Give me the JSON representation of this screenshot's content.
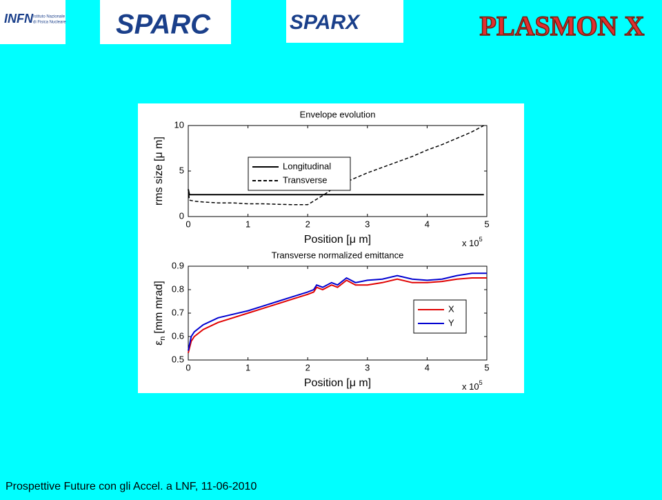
{
  "logos": {
    "infn": {
      "name": "INFN",
      "lines": [
        "Istituto Nazionale",
        "di Fisica Nucleare"
      ]
    },
    "sparc": "SPARC",
    "sparx": "SPARX",
    "plasmonx": "PLASMON X"
  },
  "footer": "Prospettive Future con gli Accel. a LNF, 11-06-2010",
  "chart_data": [
    {
      "type": "line",
      "title": "Envelope evolution",
      "xlabel": "Position [μ m]",
      "ylabel": "rms size [μ m]",
      "x_multiplier": {
        "base": "x 10",
        "exponent": "5"
      },
      "x": [
        0,
        0.02,
        0.1,
        0.25,
        0.5,
        0.75,
        1,
        1.25,
        1.5,
        1.75,
        1.9,
        2,
        2.25,
        2.5,
        2.75,
        3,
        3.25,
        3.5,
        3.75,
        4,
        4.25,
        4.5,
        4.75,
        4.95
      ],
      "series": [
        {
          "name": "Longitudinal",
          "color": "#000000",
          "linestyle": "solid",
          "values": [
            3,
            2.4,
            2.4,
            2.4,
            2.4,
            2.4,
            2.4,
            2.4,
            2.4,
            2.4,
            2.4,
            2.4,
            2.4,
            2.4,
            2.4,
            2.4,
            2.4,
            2.4,
            2.4,
            2.4,
            2.4,
            2.4,
            2.4,
            2.4
          ]
        },
        {
          "name": "Transverse",
          "color": "#000000",
          "linestyle": "dashed",
          "values": [
            3,
            1.8,
            1.7,
            1.6,
            1.5,
            1.5,
            1.4,
            1.4,
            1.35,
            1.3,
            1.3,
            1.3,
            2.3,
            3.4,
            4.1,
            4.8,
            5.4,
            6.0,
            6.6,
            7.3,
            7.9,
            8.6,
            9.3,
            10
          ]
        }
      ],
      "xlim": [
        0,
        5
      ],
      "xticks": [
        0,
        1,
        2,
        3,
        4,
        5
      ],
      "ylim": [
        0,
        10
      ],
      "yticks": [
        0,
        5,
        10
      ],
      "legend": "center",
      "grid": false
    },
    {
      "type": "line",
      "title": "Transverse normalized emittance",
      "xlabel": "Position [μ m]",
      "ylabel": {
        "symbol": "ε",
        "sub": "n",
        "unit": "[mm mrad]"
      },
      "x_multiplier": {
        "base": "x 10",
        "exponent": "5"
      },
      "x": [
        0,
        0.05,
        0.1,
        0.25,
        0.5,
        0.75,
        1,
        1.25,
        1.5,
        1.75,
        2,
        2.1,
        2.15,
        2.25,
        2.4,
        2.5,
        2.65,
        2.8,
        3,
        3.25,
        3.5,
        3.75,
        4,
        4.25,
        4.5,
        4.75,
        5
      ],
      "series": [
        {
          "name": "X",
          "color": "#e00000",
          "linestyle": "solid",
          "values": [
            0.53,
            0.58,
            0.6,
            0.63,
            0.66,
            0.68,
            0.7,
            0.72,
            0.74,
            0.76,
            0.78,
            0.79,
            0.81,
            0.8,
            0.82,
            0.81,
            0.84,
            0.82,
            0.82,
            0.83,
            0.845,
            0.83,
            0.83,
            0.835,
            0.845,
            0.85,
            0.85
          ]
        },
        {
          "name": "Y",
          "color": "#0000d0",
          "linestyle": "solid",
          "values": [
            0.54,
            0.6,
            0.62,
            0.65,
            0.68,
            0.695,
            0.71,
            0.73,
            0.75,
            0.77,
            0.79,
            0.8,
            0.82,
            0.81,
            0.83,
            0.82,
            0.85,
            0.83,
            0.84,
            0.845,
            0.86,
            0.845,
            0.84,
            0.845,
            0.86,
            0.87,
            0.87
          ]
        }
      ],
      "xlim": [
        0,
        5
      ],
      "xticks": [
        0,
        1,
        2,
        3,
        4,
        5
      ],
      "ylim": [
        0.5,
        0.9
      ],
      "yticks": [
        0.5,
        0.6,
        0.7,
        0.8,
        0.9
      ],
      "legend": "right",
      "grid": false
    }
  ]
}
